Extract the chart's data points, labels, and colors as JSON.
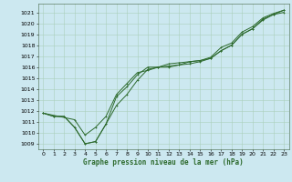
{
  "bg_color": "#cce8f0",
  "grid_color": "#aacfbb",
  "line_color": "#2d6a2d",
  "marker_color": "#2d6a2d",
  "xlabel": "Graphe pression niveau de la mer (hPa)",
  "xlim": [
    -0.5,
    23.5
  ],
  "ylim": [
    1008.5,
    1021.8
  ],
  "yticks": [
    1009,
    1010,
    1011,
    1012,
    1013,
    1014,
    1015,
    1016,
    1017,
    1018,
    1019,
    1020,
    1021
  ],
  "xticks": [
    0,
    1,
    2,
    3,
    4,
    5,
    6,
    7,
    8,
    9,
    10,
    11,
    12,
    13,
    14,
    15,
    16,
    17,
    18,
    19,
    20,
    21,
    22,
    23
  ],
  "line1_x": [
    0,
    1,
    2,
    3,
    4,
    5,
    6,
    7,
    8,
    9,
    10,
    11,
    12,
    13,
    14,
    15,
    16,
    17,
    18,
    19,
    20,
    21,
    22,
    23
  ],
  "line1_y": [
    1011.8,
    1011.5,
    1011.5,
    1010.5,
    1009.0,
    1009.2,
    1010.8,
    1012.5,
    1013.5,
    1014.8,
    1015.8,
    1016.0,
    1016.0,
    1016.2,
    1016.3,
    1016.5,
    1016.8,
    1017.5,
    1018.0,
    1019.0,
    1019.5,
    1020.4,
    1020.8,
    1021.0
  ],
  "line2_x": [
    0,
    1,
    2,
    3,
    4,
    5,
    6,
    7,
    8,
    9,
    10,
    11,
    12,
    13,
    14,
    15,
    16,
    17,
    18,
    19,
    20,
    21,
    22,
    23
  ],
  "line2_y": [
    1011.8,
    1011.5,
    1011.5,
    1010.5,
    1009.0,
    1009.2,
    1010.8,
    1013.3,
    1014.2,
    1015.3,
    1016.0,
    1016.0,
    1016.3,
    1016.4,
    1016.5,
    1016.6,
    1016.9,
    1017.8,
    1018.2,
    1019.2,
    1019.7,
    1020.5,
    1020.9,
    1021.2
  ],
  "line3_x": [
    0,
    3,
    4,
    5,
    6,
    7,
    8,
    9,
    10,
    11,
    12,
    13,
    14,
    15,
    16,
    17,
    18,
    19,
    20,
    21,
    22,
    23
  ],
  "line3_y": [
    1011.8,
    1011.2,
    1009.8,
    1010.5,
    1011.5,
    1013.5,
    1014.5,
    1015.5,
    1015.7,
    1016.0,
    1016.1,
    1016.2,
    1016.5,
    1016.6,
    1016.8,
    1017.5,
    1018.0,
    1019.0,
    1019.5,
    1020.3,
    1020.8,
    1021.2
  ],
  "xlabel_fontsize": 5.5,
  "tick_fontsize": 4.5,
  "linewidth": 0.7,
  "markersize": 2.0
}
